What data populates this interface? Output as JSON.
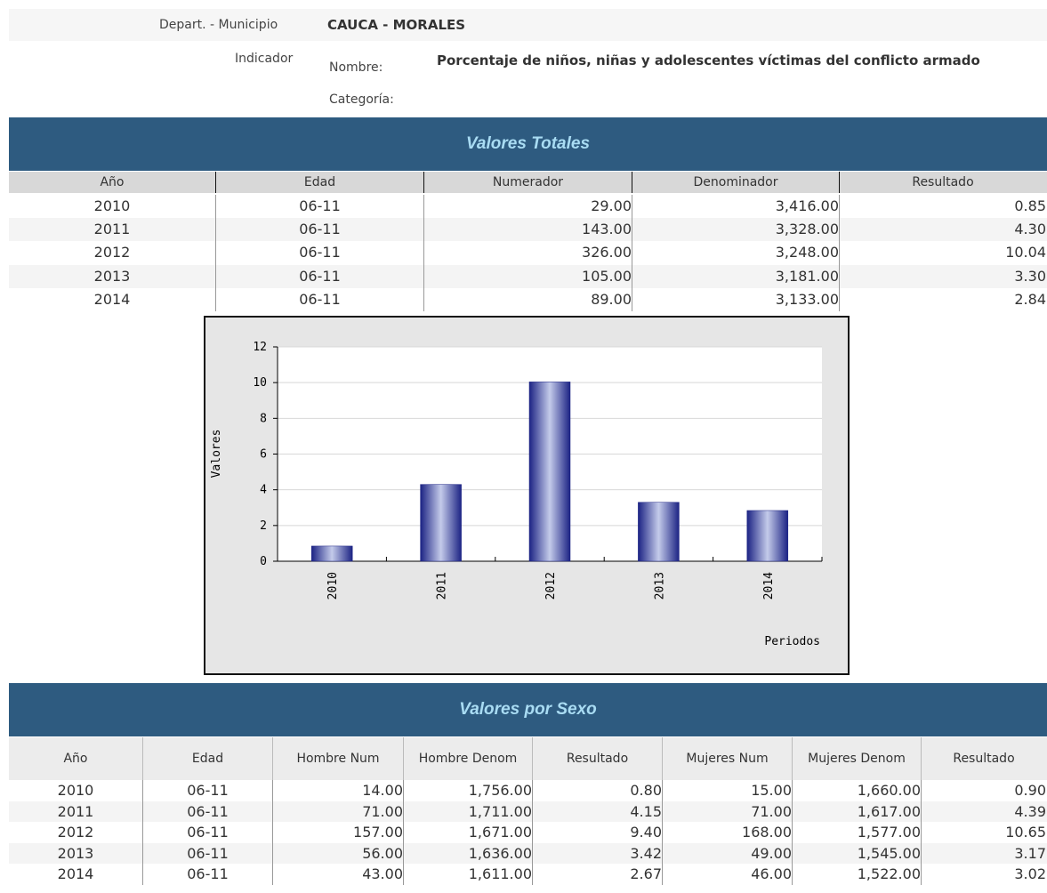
{
  "header": {
    "location_label": "Depart. - Municipio",
    "location": "CAUCA - MORALES",
    "indicator_label": "Indicador",
    "name_label": "Nombre:",
    "name": "Porcentaje de niños, niñas y adolescentes víctimas del conflicto armado",
    "category_label": "Categoría:"
  },
  "totals": {
    "title": "Valores Totales",
    "columns": [
      "Año",
      "Edad",
      "Numerador",
      "Denominador",
      "Resultado"
    ],
    "rows": [
      [
        "2010",
        "06-11",
        "29.00",
        "3,416.00",
        "0.85"
      ],
      [
        "2011",
        "06-11",
        "143.00",
        "3,328.00",
        "4.30"
      ],
      [
        "2012",
        "06-11",
        "326.00",
        "3,248.00",
        "10.04"
      ],
      [
        "2013",
        "06-11",
        "105.00",
        "3,181.00",
        "3.30"
      ],
      [
        "2014",
        "06-11",
        "89.00",
        "3,133.00",
        "2.84"
      ]
    ]
  },
  "chart_data": {
    "type": "bar",
    "categories": [
      "2010",
      "2011",
      "2012",
      "2013",
      "2014"
    ],
    "values": [
      0.85,
      4.3,
      10.04,
      3.3,
      2.84
    ],
    "color": "#1c2384",
    "ylim": [
      0,
      12
    ],
    "yticks": [
      0,
      2,
      4,
      6,
      8,
      10,
      12
    ],
    "ylabel": "Valores",
    "xlabel": "Periodos",
    "grid": true
  },
  "by_sex": {
    "title": "Valores por Sexo",
    "columns": [
      "Año",
      "Edad",
      "Hombre Num",
      "Hombre Denom",
      "Resultado",
      "Mujeres Num",
      "Mujeres Denom",
      "Resultado"
    ],
    "rows": [
      [
        "2010",
        "06-11",
        "14.00",
        "1,756.00",
        "0.80",
        "15.00",
        "1,660.00",
        "0.90"
      ],
      [
        "2011",
        "06-11",
        "71.00",
        "1,711.00",
        "4.15",
        "71.00",
        "1,617.00",
        "4.39"
      ],
      [
        "2012",
        "06-11",
        "157.00",
        "1,671.00",
        "9.40",
        "168.00",
        "1,577.00",
        "10.65"
      ],
      [
        "2013",
        "06-11",
        "56.00",
        "1,636.00",
        "3.42",
        "49.00",
        "1,545.00",
        "3.17"
      ],
      [
        "2014",
        "06-11",
        "43.00",
        "1,611.00",
        "2.67",
        "46.00",
        "1,522.00",
        "3.02"
      ]
    ]
  }
}
